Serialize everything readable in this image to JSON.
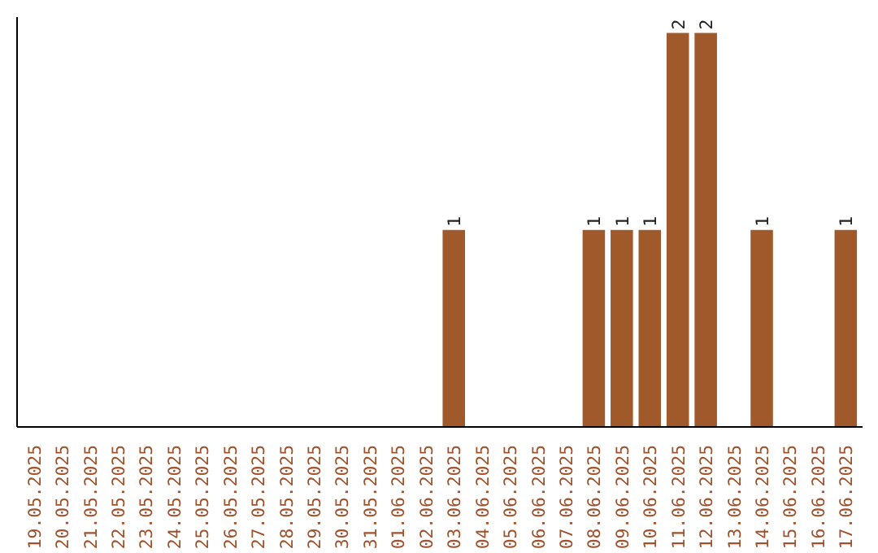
{
  "chart_data": {
    "type": "bar",
    "categories": [
      "19.05.2025",
      "20.05.2025",
      "21.05.2025",
      "22.05.2025",
      "23.05.2025",
      "24.05.2025",
      "25.05.2025",
      "26.05.2025",
      "27.05.2025",
      "28.05.2025",
      "29.05.2025",
      "30.05.2025",
      "31.05.2025",
      "01.06.2025",
      "02.06.2025",
      "03.06.2025",
      "04.06.2025",
      "05.06.2025",
      "06.06.2025",
      "07.06.2025",
      "08.06.2025",
      "09.06.2025",
      "10.06.2025",
      "11.06.2025",
      "12.06.2025",
      "13.06.2025",
      "14.06.2025",
      "15.06.2025",
      "16.06.2025",
      "17.06.2025"
    ],
    "values": [
      null,
      null,
      null,
      null,
      null,
      null,
      null,
      null,
      null,
      null,
      null,
      null,
      null,
      null,
      null,
      1,
      null,
      null,
      null,
      null,
      1,
      1,
      1,
      2,
      2,
      null,
      1,
      null,
      null,
      1
    ],
    "value_labels": [
      null,
      null,
      null,
      null,
      null,
      null,
      null,
      null,
      null,
      null,
      null,
      null,
      null,
      null,
      null,
      "1",
      null,
      null,
      null,
      null,
      "1",
      "1",
      "1",
      "2",
      "2",
      null,
      "1",
      null,
      null,
      "1"
    ],
    "color": "#a0592a",
    "grid": false
  }
}
